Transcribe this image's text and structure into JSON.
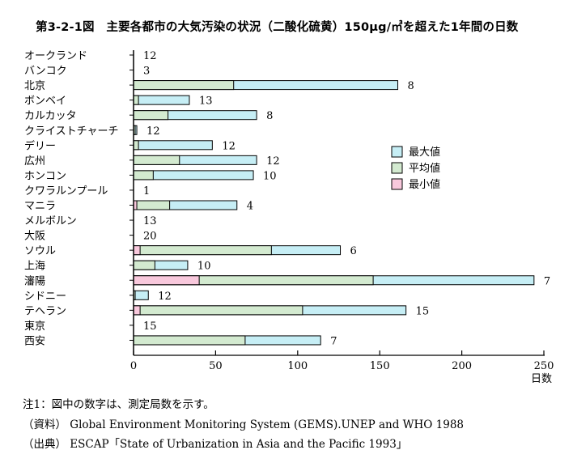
{
  "title": "第3-2-1図　主要各都市の大気汚染の状況（二酸化硫黄）150μg/㎥を超えた1年間の日数",
  "notes": [
    "注1：図中の数字は、測定局数を示す。",
    "（資料）  Global Environment Monitoring System (GEMS).UNEP and WHO 1988",
    "（出典）  ESCAP「State of Urbanization in Asia and the Pacific 1993」"
  ],
  "colors": {
    "max": "#c6eef5",
    "avg": "#d3ead0",
    "min": "#f8c8dc",
    "border": "#000000"
  },
  "chart_data": {
    "type": "bar",
    "orientation": "horizontal",
    "stacked_overlay": true,
    "title": "第3-2-1図　主要各都市の大気汚染の状況（二酸化硫黄）150μg/㎥を超えた1年間の日数",
    "xlabel": "日数",
    "ylabel": "",
    "xlim": [
      0,
      250
    ],
    "xticks": [
      0,
      50,
      100,
      150,
      200,
      250
    ],
    "legend_position": "right",
    "categories": [
      "オークランド",
      "バンコク",
      "北京",
      "ボンベイ",
      "カルカッタ",
      "クライストチャーチ",
      "デリー",
      "広州",
      "ホンコン",
      "クワラルンプール",
      "マニラ",
      "メルボルン",
      "大阪",
      "ソウル",
      "上海",
      "瀋陽",
      "シドニー",
      "テヘラン",
      "東京",
      "西安"
    ],
    "series": [
      {
        "name": "最大値",
        "values": [
          0,
          0,
          161,
          34,
          75,
          2,
          48,
          75,
          73,
          0,
          63,
          0,
          0,
          126,
          33,
          244,
          9,
          166,
          0,
          114
        ]
      },
      {
        "name": "平均値",
        "values": [
          0,
          0,
          61,
          3,
          21,
          1,
          3,
          28,
          12,
          0,
          22,
          0,
          0,
          84,
          13,
          146,
          1,
          103,
          0,
          68
        ]
      },
      {
        "name": "最小値",
        "values": [
          0,
          0,
          0,
          0,
          0,
          0,
          0,
          0,
          0,
          0,
          2,
          0,
          0,
          4,
          0,
          40,
          0,
          4,
          0,
          0
        ]
      }
    ],
    "station_counts": [
      "12",
      "3",
      "8",
      "13",
      "8",
      "12",
      "12",
      "12",
      "10",
      "1",
      "4",
      "13",
      "20",
      "6",
      "10",
      "7",
      "12",
      "15",
      "15",
      "7"
    ]
  }
}
